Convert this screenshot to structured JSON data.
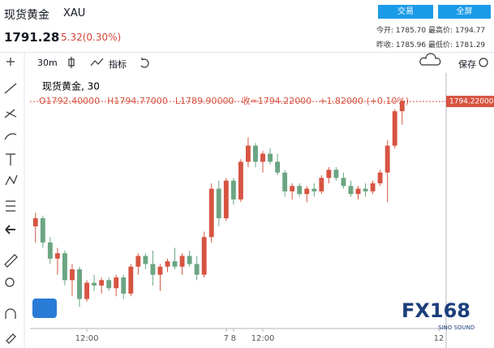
{
  "header": {
    "title": "现货黄金",
    "symbol": "XAU",
    "price": "1791.28",
    "change": "5.32(0.30%)",
    "buttons": [
      "交易",
      "全屏"
    ],
    "stats": [
      [
        "今开:",
        "1785.70",
        "最高价:",
        "1794.77"
      ],
      [
        "昨收:",
        "1785.96",
        "最低价:",
        "1781.29"
      ]
    ]
  },
  "toolbar": {
    "interval": "30m",
    "indicators": "指标",
    "save": "保存"
  },
  "chart_data": {
    "type": "candlestick",
    "title": "现货黄金, 30",
    "legend": [
      "O1792.40000",
      "H1794.77000",
      "L1789.90000",
      "收=1794.22000",
      "+1.82000 (+0.10%)"
    ],
    "x": [
      -19,
      -18,
      -17,
      -16,
      -15,
      -14,
      -13,
      -12,
      -11,
      -10,
      -9,
      -8,
      -7,
      -6,
      -5,
      -4,
      -3,
      -2,
      -1,
      0,
      1,
      2,
      3,
      4,
      5,
      6,
      7,
      8,
      9,
      10,
      11,
      12,
      13,
      14,
      15,
      16,
      17,
      18,
      19,
      20,
      21,
      22,
      23,
      24,
      25,
      26,
      27,
      28,
      29,
      30,
      31
    ],
    "open": [
      1771,
      1772.5,
      1768,
      1765,
      1766,
      1761,
      1763,
      1757.5,
      1760.5,
      1760,
      1761,
      1759.5,
      1761.5,
      1758.5,
      1763.5,
      1765.5,
      1764,
      1762,
      1763.5,
      1764.5,
      1763.5,
      1765.5,
      1764,
      1762,
      1769,
      1778,
      1772.5,
      1779.5,
      1776,
      1783,
      1786,
      1783,
      1784.5,
      1783,
      1781,
      1777.5,
      1778.5,
      1777,
      1778,
      1777.5,
      1780,
      1781.5,
      1780,
      1778.5,
      1777,
      1778,
      1777.5,
      1779,
      1781,
      1786,
      1792.4
    ],
    "high": [
      1773.5,
      1773,
      1769,
      1767,
      1766.5,
      1764,
      1763.5,
      1761,
      1762,
      1761.5,
      1761.5,
      1762,
      1762,
      1764,
      1766,
      1766,
      1766.5,
      1764,
      1765,
      1767,
      1766,
      1766.5,
      1765.5,
      1770,
      1779,
      1779.5,
      1780,
      1780,
      1783.5,
      1787.5,
      1786.5,
      1785,
      1785.5,
      1784.5,
      1781.5,
      1779,
      1779,
      1778.5,
      1779,
      1780.5,
      1782,
      1782,
      1781,
      1779.5,
      1778.5,
      1779,
      1779.5,
      1781.5,
      1787,
      1792.8,
      1794.77
    ],
    "low": [
      1768,
      1767,
      1764,
      1762,
      1760,
      1758,
      1756,
      1757,
      1759,
      1758.5,
      1759,
      1758,
      1757.5,
      1758,
      1762,
      1763,
      1760,
      1759,
      1762.5,
      1763,
      1762,
      1763.5,
      1761,
      1761.5,
      1768,
      1771,
      1772,
      1775,
      1775.5,
      1782,
      1782,
      1781,
      1782.5,
      1780.5,
      1776.5,
      1776,
      1776.5,
      1775.5,
      1776.5,
      1777,
      1779,
      1779.5,
      1778,
      1776.5,
      1776,
      1776.5,
      1777,
      1778.5,
      1775.5,
      1785.5,
      1789.9
    ],
    "close": [
      1772.5,
      1768,
      1765,
      1766,
      1761,
      1763,
      1757.5,
      1760.5,
      1760,
      1761,
      1759.5,
      1761.5,
      1758.5,
      1763.5,
      1765.5,
      1764,
      1762,
      1763.5,
      1764.5,
      1763.5,
      1765.5,
      1764,
      1762,
      1769,
      1778,
      1772.5,
      1779.5,
      1776,
      1783,
      1786,
      1783,
      1784.5,
      1783,
      1781,
      1777.5,
      1778.5,
      1777,
      1778,
      1777.5,
      1780,
      1781.5,
      1780,
      1778.5,
      1777,
      1778,
      1777.5,
      1779,
      1781,
      1786,
      1792.4,
      1794.22
    ],
    "close_label": "1794.22000",
    "up_color": "#d75442",
    "down_color": "#6ba583",
    "xlim": [
      -19.75,
      37
    ],
    "xticks": [
      {
        "value": -12,
        "label": "12:00"
      },
      7,
      {
        "value": 12,
        "label": "12:00"
      },
      8,
      {
        "value": 36,
        "label": "12"
      }
    ],
    "ylim": [
      1752,
      1798
    ]
  },
  "watermark": {
    "logo": "FX168",
    "sub": "SINO SOUND"
  }
}
